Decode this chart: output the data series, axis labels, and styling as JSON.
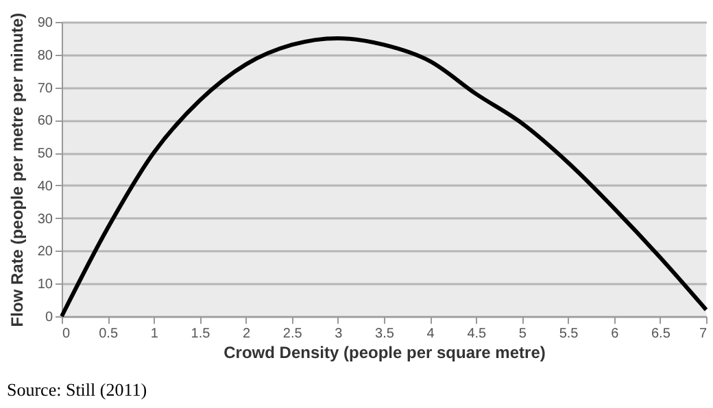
{
  "chart_data": {
    "type": "line",
    "xlabel": "Crowd Density (people per square metre)",
    "ylabel": "Flow Rate (people per metre per minute)",
    "annotations": [
      "Source: Still (2011)"
    ],
    "x": [
      0,
      0.5,
      1,
      1.5,
      2,
      2.5,
      3,
      3.5,
      4,
      4.5,
      5,
      5.5,
      6,
      6.5,
      7
    ],
    "series": [
      {
        "color": "#000000",
        "values": [
          0,
          27,
          50,
          66,
          77,
          83,
          85,
          83,
          78,
          68,
          59,
          47,
          33,
          18,
          2
        ]
      }
    ],
    "xlim": [
      0,
      7
    ],
    "xticks": [
      0,
      0.5,
      1,
      1.5,
      2,
      2.5,
      3,
      3.5,
      4,
      4.5,
      5,
      5.5,
      6,
      6.5,
      7
    ],
    "ylim": [
      0,
      90
    ],
    "yticks": [
      0,
      10,
      20,
      30,
      40,
      50,
      60,
      70,
      80,
      90
    ],
    "grid": "y",
    "legend": false,
    "marker": "none",
    "line_style": "solid"
  }
}
